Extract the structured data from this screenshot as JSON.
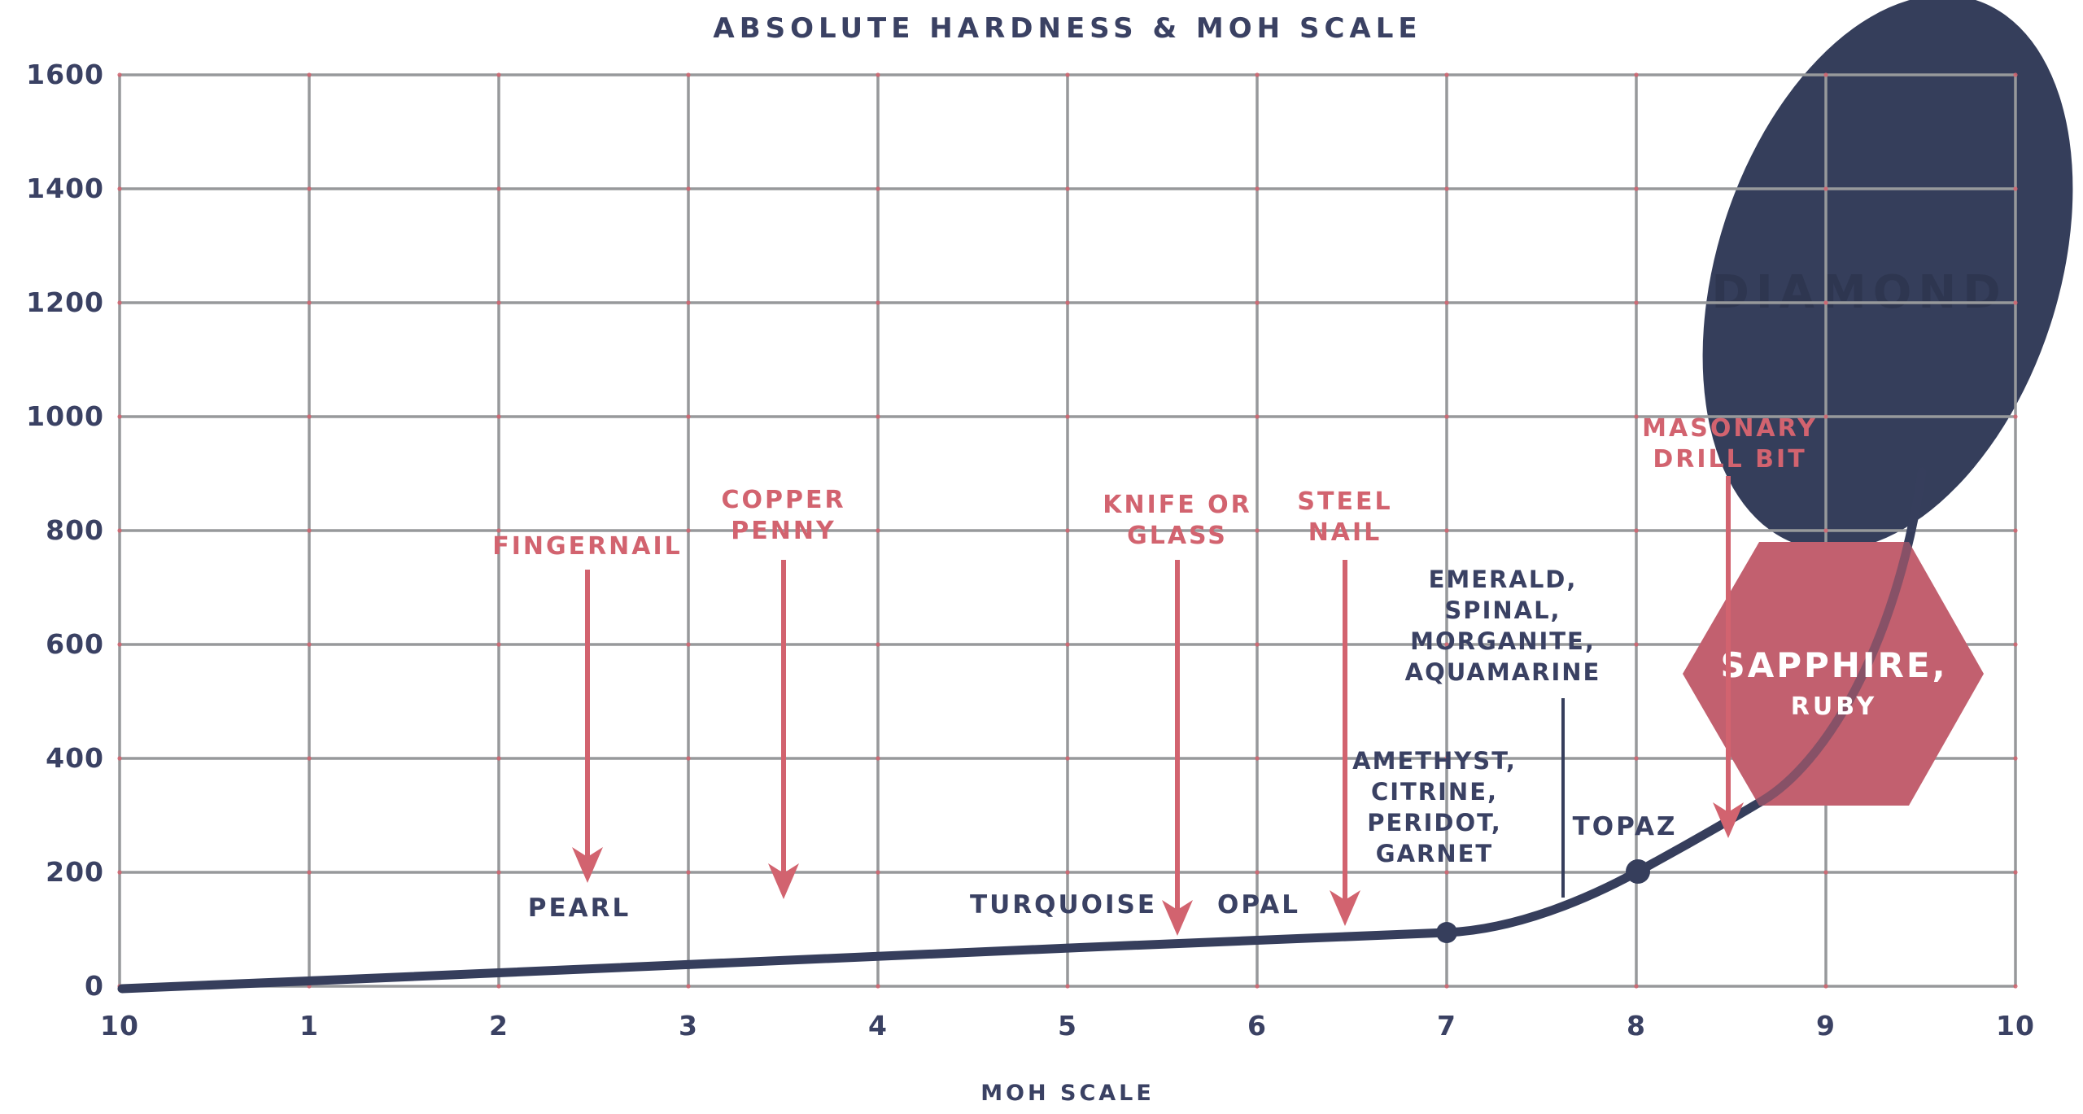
{
  "title": "ABSOLUTE HARDNESS & MOH SCALE",
  "colors": {
    "background": "#ffffff",
    "navy": "#3A4163",
    "curve_navy": "#363E5C",
    "ellipse_navy": "#353E5B",
    "hidden_text_navy": "#2E3650",
    "pink": "#D2636F",
    "hexagon_pink": "#C2606F",
    "grid_gray": "#97999B",
    "white": "#FFFFFF"
  },
  "chart_data": {
    "type": "line",
    "title": "ABSOLUTE HARDNESS & MOH SCALE",
    "xlabel": "MOH SCALE",
    "ylabel": "",
    "x_ticks": [
      "10",
      "1",
      "2",
      "3",
      "4",
      "5",
      "6",
      "7",
      "8",
      "9",
      "10"
    ],
    "y_ticks": [
      "1600",
      "1400",
      "1200",
      "1000",
      "800",
      "600",
      "400",
      "200",
      "0"
    ],
    "ylim": [
      0,
      1600
    ],
    "xlim_note": "x axis labeled 10 then 1 through 10 (Moh scale)",
    "grid": true,
    "series": [
      {
        "name": "Absolute hardness curve",
        "x": [
          0,
          1,
          2,
          3,
          4,
          5,
          6,
          7,
          8,
          9,
          10
        ],
        "values": [
          0,
          8,
          20,
          37,
          52,
          66,
          81,
          95,
          200,
          400,
          1500
        ]
      }
    ],
    "marked_points": [
      {
        "mohs": 7,
        "value": 95
      },
      {
        "mohs": 8,
        "value": 200
      }
    ],
    "tool_annotations": [
      {
        "label": "FINGERNAIL",
        "mohs": 2.5
      },
      {
        "label": "COPPER PENNY",
        "mohs": 3.5
      },
      {
        "label": "KNIFE OR GLASS",
        "mohs": 5.5
      },
      {
        "label": "STEEL NAIL",
        "mohs": 6.5
      },
      {
        "label": "MASONARY DRILL BIT",
        "mohs": 8.5
      }
    ],
    "gem_annotations": [
      {
        "label": "PEARL",
        "mohs": 2.4
      },
      {
        "label": "TURQUOISE",
        "mohs": 5
      },
      {
        "label": "OPAL",
        "mohs": 6
      },
      {
        "label": "AMETHYST, CITRINE, PERIDOT, GARNET",
        "mohs": 7
      },
      {
        "label": "EMERALD, SPINAL, MORGANITE, AQUAMARINE",
        "mohs": 7.3
      },
      {
        "label": "TOPAZ",
        "mohs": 8
      },
      {
        "label": "SAPPHIRE, RUBY",
        "mohs": 9,
        "shape": "hexagon"
      },
      {
        "label": "DIAMOND",
        "mohs": 10,
        "shape": "ellipse"
      }
    ]
  },
  "labels": {
    "fingernail": {
      "line1": "FINGERNAIL"
    },
    "copper": {
      "line1": "COPPER",
      "line2": "PENNY"
    },
    "knife": {
      "line1": "KNIFE OR",
      "line2": "GLASS"
    },
    "steel": {
      "line1": "STEEL",
      "line2": "NAIL"
    },
    "masonary": {
      "line1": "MASONARY",
      "line2": "DRILL BIT"
    },
    "pearl": "PEARL",
    "turquoise": "TURQUOISE",
    "opal": "OPAL",
    "topaz": "TOPAZ",
    "amethyst_group": [
      "AMETHYST,",
      "CITRINE,",
      "PERIDOT,",
      "GARNET"
    ],
    "emerald_group": [
      "EMERALD,",
      "SPINAL,",
      "MORGANITE,",
      "AQUAMARINE"
    ],
    "hexagon": {
      "line1": "SAPPHIRE,",
      "line2": "RUBY"
    },
    "ellipse_hidden": "DIAMOND",
    "x_axis_caption": "MOH SCALE"
  }
}
